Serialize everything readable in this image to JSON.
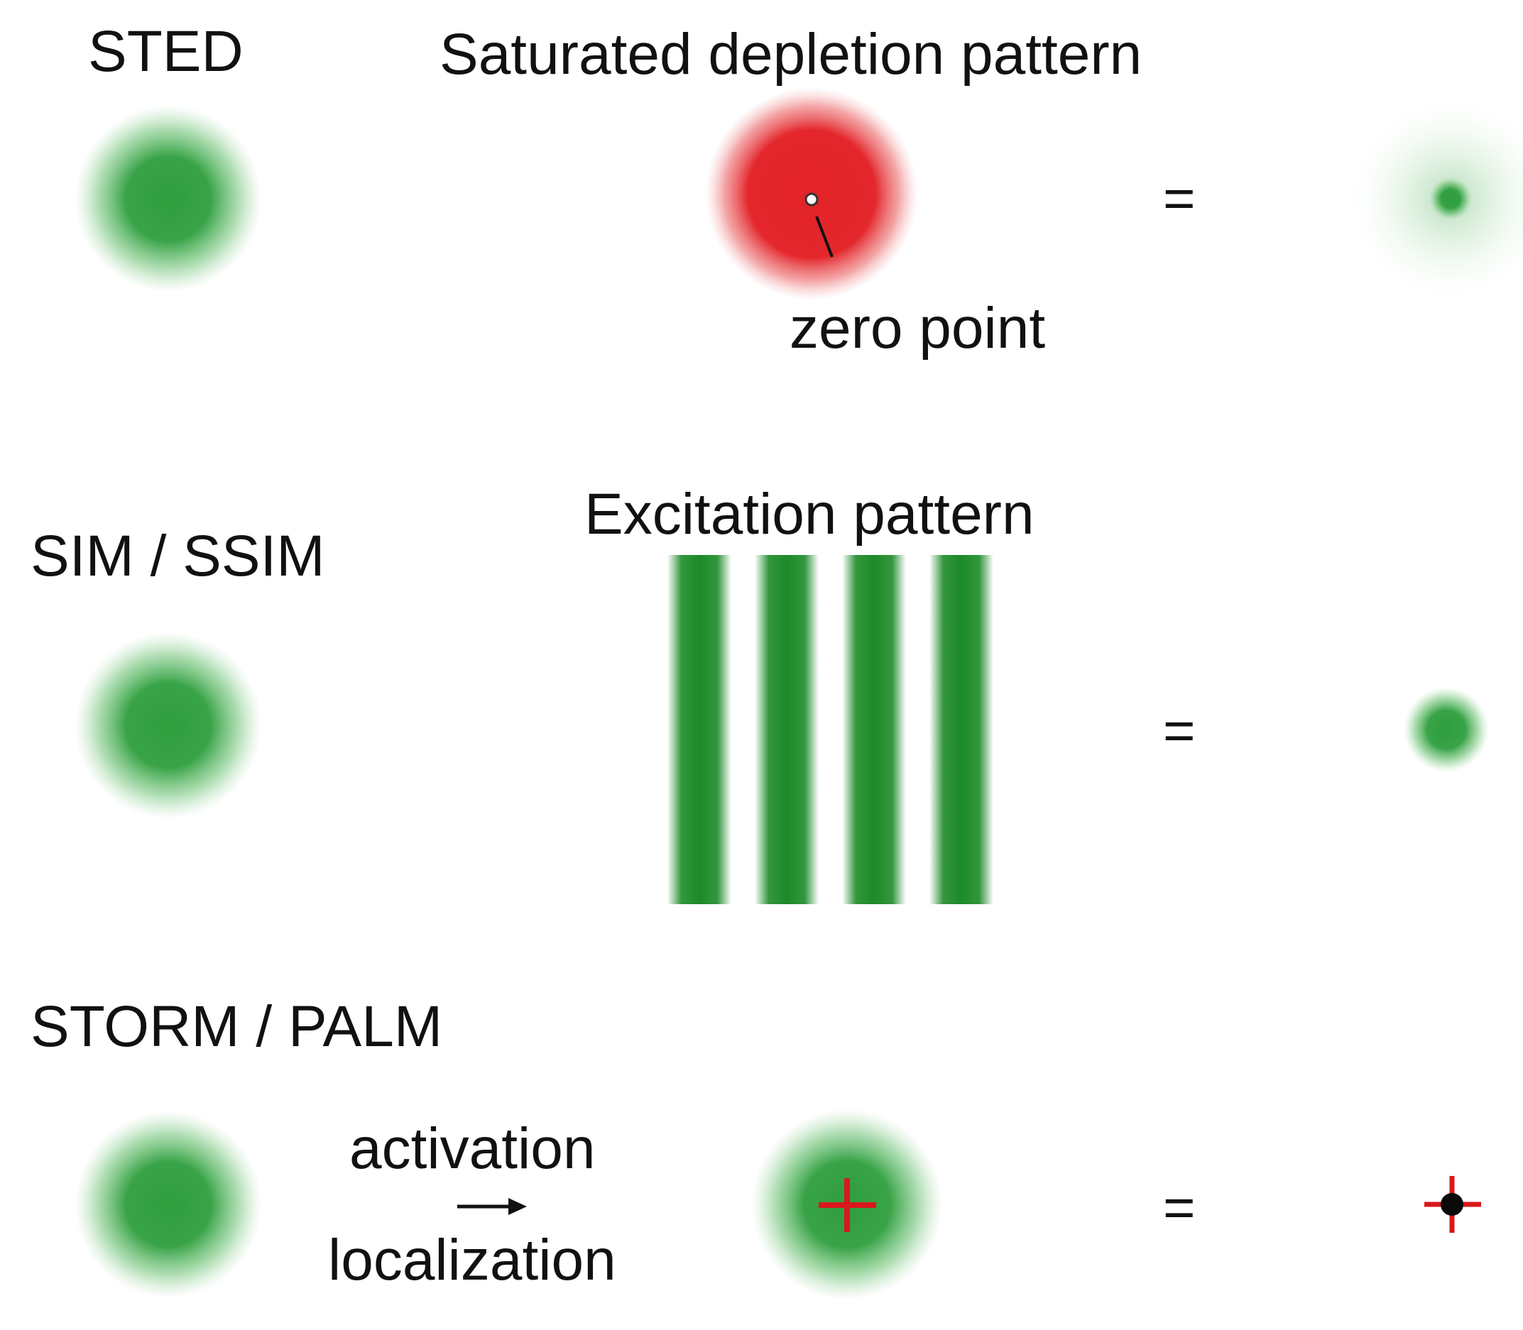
{
  "rows": [
    {
      "method": "STED",
      "pattern_title": "Saturated depletion pattern",
      "annotation": "zero point",
      "operator": "="
    },
    {
      "method": "SIM / SSIM",
      "pattern_title": "Excitation pattern",
      "operator": "="
    },
    {
      "method": "STORM / PALM",
      "step_top": "activation",
      "step_bottom": "localization",
      "operator": "="
    }
  ],
  "colors": {
    "fluorescence": "#2e9e3e",
    "depletion": "#e32328",
    "stripes": "#1c8a28",
    "marker": "#d8181c",
    "text": "#111111"
  }
}
